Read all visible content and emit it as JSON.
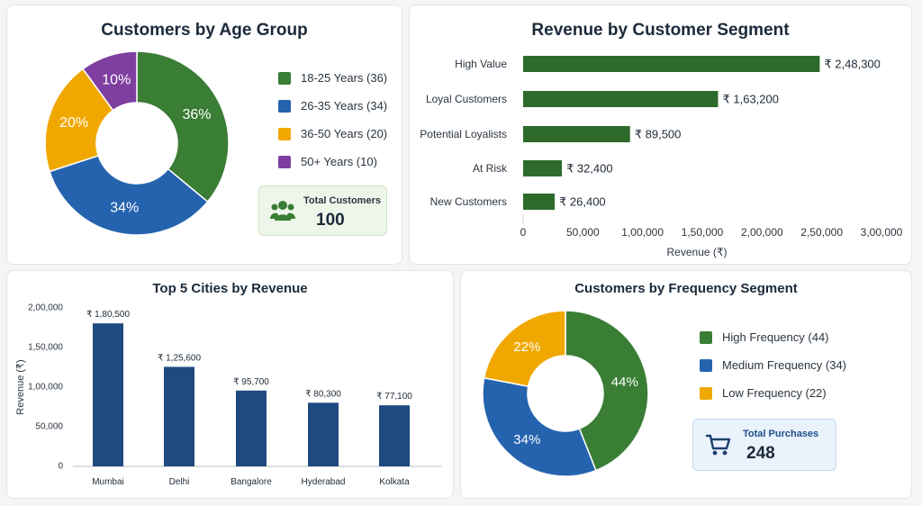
{
  "colors": {
    "green": "#3a7d35",
    "blue": "#2563ae",
    "yellow": "#f0a800",
    "purple": "#7e3fa0",
    "bar_green": "#2e6b2a",
    "bar_navy": "#1e4a80"
  },
  "total_customers": {
    "label": "Total Customers",
    "value": "100",
    "icon": "users-icon"
  },
  "total_purchases": {
    "label": "Total Purchases",
    "value": "248",
    "icon": "shopping-cart-icon"
  },
  "chart_data": [
    {
      "type": "pie",
      "title": "Customers by Age Group",
      "donut": true,
      "categories": [
        "18-25 Years (36)",
        "26-35 Years (34)",
        "36-50 Years (20)",
        "50+ Years (10)"
      ],
      "values": [
        36,
        34,
        20,
        10
      ],
      "slice_labels": [
        "36%",
        "34%",
        "20%",
        "10%"
      ],
      "colors": [
        "#3a7d35",
        "#2563ae",
        "#f0a800",
        "#7e3fa0"
      ],
      "legend": "right"
    },
    {
      "type": "bar",
      "orientation": "horizontal",
      "title": "Revenue by Customer Segment",
      "categories": [
        "High Value",
        "Loyal Customers",
        "Potential Loyalists",
        "At Risk",
        "New Customers"
      ],
      "values": [
        248300,
        163200,
        89500,
        32400,
        26400
      ],
      "data_labels": [
        "₹ 2,48,300",
        "₹ 1,63,200",
        "₹ 89,500",
        "₹ 32,400",
        "₹ 26,400"
      ],
      "xlabel": "Revenue (₹)",
      "xlim": [
        0,
        300000
      ],
      "xticks": [
        "0",
        "50,000",
        "1,00,000",
        "1,50,000",
        "2,00,000",
        "2,50,000",
        "3,00,000"
      ],
      "grid": false
    },
    {
      "type": "bar",
      "title": "Top 5 Cities by Revenue",
      "categories": [
        "Mumbai",
        "Delhi",
        "Bangalore",
        "Hyderabad",
        "Kolkata"
      ],
      "values": [
        180500,
        125600,
        95700,
        80300,
        77100
      ],
      "data_labels": [
        "₹ 1,80,500",
        "₹ 1,25,600",
        "₹ 95,700",
        "₹ 80,300",
        "₹ 77,100"
      ],
      "ylabel": "Revenue (₹)",
      "ylim": [
        0,
        200000
      ],
      "yticks": [
        "0",
        "50,000",
        "1,00,000",
        "1,50,000",
        "2,00,000"
      ],
      "grid": false
    },
    {
      "type": "pie",
      "title": "Customers by Frequency Segment",
      "donut": true,
      "categories": [
        "High Frequency (44)",
        "Medium Frequency (34)",
        "Low Frequency (22)"
      ],
      "values": [
        44,
        34,
        22
      ],
      "slice_labels": [
        "44%",
        "34%",
        "22%"
      ],
      "colors": [
        "#3a7d35",
        "#2563ae",
        "#f0a800"
      ],
      "legend": "right"
    }
  ]
}
